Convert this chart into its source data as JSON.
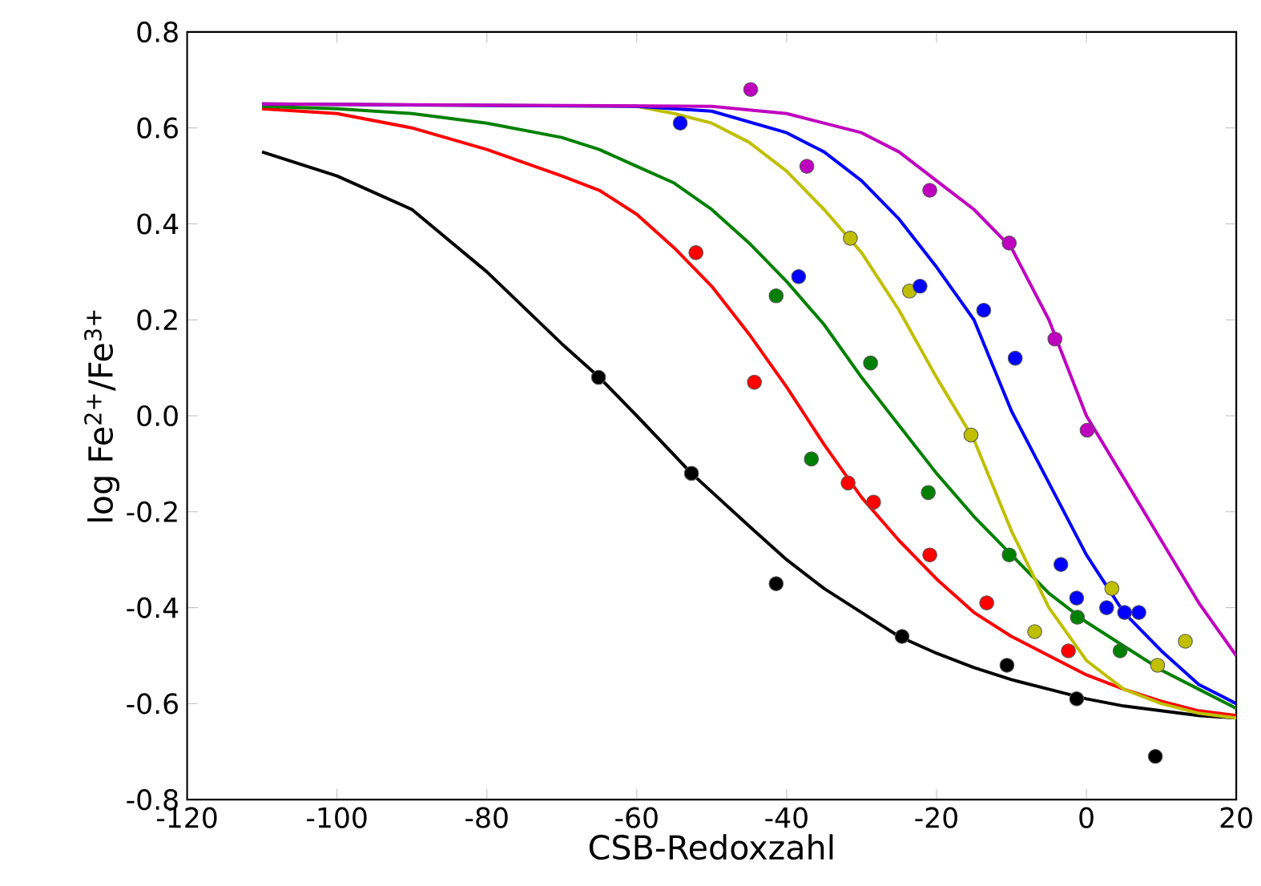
{
  "chart_data": {
    "type": "scatter",
    "xlabel": "CSB-Redoxzahl",
    "ylabel": "log Fe$^{2+}$/Fe$^{3+}$",
    "xlim": [
      -120,
      20
    ],
    "ylim": [
      -0.8,
      0.8
    ],
    "xticks": [
      -120,
      -100,
      -80,
      -60,
      -40,
      -20,
      0,
      20
    ],
    "yticks": [
      {
        "value": -0.8,
        "label": "-0.8"
      },
      {
        "value": -0.6,
        "label": "-0.6"
      },
      {
        "value": -0.4,
        "label": "-0.4"
      },
      {
        "value": -0.2,
        "label": "-0.2"
      },
      {
        "value": 0,
        "label": "0.0"
      },
      {
        "value": 0.2,
        "label": "0.2"
      },
      {
        "value": 0.4,
        "label": "0.4"
      },
      {
        "value": 0.6,
        "label": "0.6"
      },
      {
        "value": 0.8,
        "label": "0.8"
      }
    ],
    "series": [
      {
        "type": "line",
        "color": "#000000",
        "marker": "none",
        "x": [
          -110,
          -100,
          -90,
          -80,
          -70,
          -65,
          -60,
          -52.7,
          -45,
          -40,
          -35,
          -30,
          -25,
          -20,
          -15,
          -10,
          -5,
          0,
          5,
          10,
          15,
          20
        ],
        "values": [
          0.55,
          0.5,
          0.43,
          0.3,
          0.15,
          0.08,
          0.0,
          -0.12,
          -0.23,
          -0.3,
          -0.36,
          -0.41,
          -0.46,
          -0.495,
          -0.525,
          -0.55,
          -0.57,
          -0.59,
          -0.605,
          -0.615,
          -0.625,
          -0.63
        ]
      },
      {
        "type": "line",
        "color": "#ff0000",
        "marker": "none",
        "x": [
          -110,
          -100,
          -90,
          -80,
          -70,
          -65,
          -60,
          -55,
          -50,
          -45,
          -40,
          -35,
          -30,
          -25,
          -20,
          -15,
          -10,
          -5,
          0,
          5,
          10,
          15,
          20
        ],
        "values": [
          0.64,
          0.63,
          0.6,
          0.555,
          0.5,
          0.47,
          0.42,
          0.35,
          0.27,
          0.17,
          0.06,
          -0.06,
          -0.17,
          -0.26,
          -0.34,
          -0.41,
          -0.46,
          -0.5,
          -0.54,
          -0.57,
          -0.595,
          -0.615,
          -0.625
        ]
      },
      {
        "type": "line",
        "color": "#008000",
        "marker": "none",
        "x": [
          -110,
          -100,
          -90,
          -80,
          -70,
          -65,
          -60,
          -55,
          -50,
          -45,
          -40,
          -35,
          -30,
          -25,
          -20,
          -15,
          -10,
          -5,
          0,
          5,
          10,
          15,
          20
        ],
        "values": [
          0.645,
          0.64,
          0.63,
          0.61,
          0.58,
          0.555,
          0.52,
          0.485,
          0.43,
          0.36,
          0.28,
          0.19,
          0.08,
          -0.02,
          -0.12,
          -0.21,
          -0.29,
          -0.37,
          -0.43,
          -0.48,
          -0.53,
          -0.57,
          -0.61
        ]
      },
      {
        "type": "line",
        "color": "#bfbf00",
        "marker": "none",
        "x": [
          -110,
          -60,
          -55,
          -50,
          -45,
          -40,
          -35,
          -30,
          -25,
          -20,
          -15,
          -10,
          -5,
          0,
          5,
          10,
          15,
          20
        ],
        "values": [
          0.65,
          0.645,
          0.63,
          0.61,
          0.57,
          0.51,
          0.43,
          0.34,
          0.22,
          0.08,
          -0.05,
          -0.24,
          -0.4,
          -0.51,
          -0.57,
          -0.6,
          -0.62,
          -0.63
        ]
      },
      {
        "type": "line",
        "color": "#0000ff",
        "marker": "none",
        "x": [
          -110,
          -60,
          -50,
          -40,
          -35,
          -30,
          -25,
          -20,
          -15,
          -10,
          -5,
          0,
          5,
          10,
          15,
          20
        ],
        "values": [
          0.65,
          0.645,
          0.635,
          0.59,
          0.55,
          0.49,
          0.41,
          0.31,
          0.2,
          0.01,
          -0.14,
          -0.29,
          -0.41,
          -0.49,
          -0.56,
          -0.6
        ]
      },
      {
        "type": "line",
        "color": "#bf00bf",
        "marker": "none",
        "x": [
          -110,
          -50,
          -40,
          -30,
          -25,
          -20,
          -15,
          -10,
          -5,
          0,
          5,
          10,
          15,
          20
        ],
        "values": [
          0.65,
          0.645,
          0.63,
          0.59,
          0.55,
          0.49,
          0.43,
          0.35,
          0.2,
          0.0,
          -0.13,
          -0.26,
          -0.39,
          -0.5
        ]
      },
      {
        "color": "#000000",
        "marker": "circle",
        "x": [
          -65.1,
          -52.7,
          -41.4,
          -24.6,
          -10.6,
          -1.3,
          9.2
        ],
        "values": [
          0.08,
          -0.12,
          -0.35,
          -0.46,
          -0.52,
          -0.59,
          -0.71
        ]
      },
      {
        "color": "#ff0000",
        "marker": "circle",
        "x": [
          -52.1,
          -44.3,
          -31.8,
          -28.4,
          -20.9,
          -13.3,
          -2.4
        ],
        "values": [
          0.34,
          0.07,
          -0.14,
          -0.18,
          -0.29,
          -0.39,
          -0.49
        ]
      },
      {
        "color": "#008000",
        "marker": "circle",
        "x": [
          -41.4,
          -36.7,
          -28.8,
          -21.1,
          -10.3,
          -1.2,
          4.5
        ],
        "values": [
          0.25,
          -0.09,
          0.11,
          -0.16,
          -0.29,
          -0.42,
          -0.49
        ]
      },
      {
        "color": "#bfbf00",
        "marker": "circle",
        "x": [
          -31.5,
          -23.6,
          -15.4,
          -6.9,
          3.4,
          9.5,
          13.2
        ],
        "values": [
          0.37,
          0.26,
          -0.04,
          -0.45,
          -0.36,
          -0.52,
          -0.47
        ]
      },
      {
        "color": "#0000ff",
        "marker": "circle",
        "x": [
          -54.2,
          -38.4,
          -22.2,
          -13.7,
          -9.5,
          -3.4,
          -1.3,
          2.7,
          5.1,
          7.0
        ],
        "values": [
          0.61,
          0.29,
          0.27,
          0.22,
          0.12,
          -0.31,
          -0.38,
          -0.4,
          -0.41,
          -0.41
        ]
      },
      {
        "color": "#bf00bf",
        "marker": "circle",
        "x": [
          -44.8,
          -37.3,
          -20.9,
          -10.3,
          -4.2,
          0.1
        ],
        "values": [
          0.68,
          0.52,
          0.47,
          0.36,
          0.16,
          -0.03
        ]
      }
    ]
  }
}
